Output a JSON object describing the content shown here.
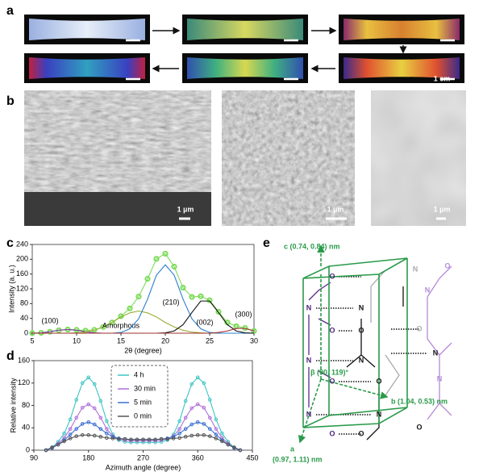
{
  "panel_labels": [
    "a",
    "b",
    "c",
    "d",
    "e"
  ],
  "panel_a": {
    "scale": "1 cm"
  },
  "panel_b": {
    "scales": [
      "1 µm",
      "1 µm",
      "1 µm"
    ]
  },
  "chart_data": [
    {
      "type": "line",
      "xlabel": "2θ (degree)",
      "ylabel": "Intensity (a. u.)",
      "x": [
        5,
        6,
        7,
        8,
        9,
        10,
        11,
        12,
        13,
        14,
        15,
        16,
        17,
        18,
        19,
        20,
        21,
        22,
        23,
        24,
        25,
        26,
        27,
        28,
        29,
        30
      ],
      "xlim": [
        5,
        30
      ],
      "xticks": [
        5,
        10,
        15,
        20,
        25,
        30
      ],
      "ylim": [
        0,
        240
      ],
      "yticks": [
        0,
        40,
        80,
        120,
        160,
        200,
        240
      ],
      "series": [
        {
          "color": "#7ddc5a",
          "markers": true,
          "values": [
            0,
            1,
            4,
            8,
            10,
            9,
            7,
            9,
            17,
            29,
            46,
            67,
            99,
            147,
            201,
            215,
            180,
            123,
            98,
            100,
            89,
            58,
            29,
            19,
            14,
            6
          ]
        },
        {
          "name": "(100)",
          "color": "#7a3aa0",
          "values": [
            0,
            1,
            4,
            8,
            10,
            8,
            4,
            1,
            0,
            0,
            0,
            0,
            0,
            0,
            0,
            0,
            0,
            0,
            0,
            0,
            0,
            0,
            0,
            0,
            0,
            0
          ]
        },
        {
          "name": "Amorphous",
          "color": "#9aaa30",
          "values": [
            0,
            0,
            0,
            0,
            0,
            1,
            3,
            8,
            17,
            29,
            44,
            55,
            60,
            55,
            44,
            29,
            17,
            8,
            3,
            1,
            0,
            0,
            0,
            0,
            0,
            0
          ]
        },
        {
          "name": "(210)",
          "color": "#2a7fd0",
          "values": [
            0,
            0,
            0,
            0,
            0,
            0,
            0,
            0,
            0,
            0,
            2,
            12,
            39,
            92,
            157,
            185,
            157,
            92,
            39,
            12,
            2,
            0,
            0,
            0,
            0,
            0
          ]
        },
        {
          "name": "(002)",
          "color": "#111111",
          "values": [
            0,
            0,
            0,
            0,
            0,
            0,
            0,
            0,
            0,
            0,
            0,
            0,
            0,
            0,
            0,
            1,
            6,
            23,
            56,
            87,
            87,
            56,
            23,
            6,
            1,
            0
          ]
        },
        {
          "name": "(300)",
          "color": "#a03030",
          "values": [
            0,
            0,
            0,
            0,
            0,
            0,
            0,
            0,
            0,
            0,
            0,
            0,
            0,
            0,
            0,
            0,
            0,
            0,
            0,
            0,
            0,
            2,
            6,
            13,
            13,
            6
          ]
        }
      ]
    },
    {
      "type": "line",
      "xlabel": "Azimuth angle (degree)",
      "ylabel": "Relative intensity",
      "x": [
        110,
        120,
        130,
        140,
        150,
        160,
        170,
        180,
        190,
        200,
        210,
        220,
        230,
        240,
        250,
        260,
        270,
        280,
        290,
        300,
        310,
        320,
        330,
        340,
        350,
        360,
        370,
        380,
        390,
        400,
        410,
        420,
        430
      ],
      "xlim": [
        90,
        450
      ],
      "xticks": [
        90,
        180,
        270,
        360,
        450
      ],
      "ylim": [
        0,
        160
      ],
      "yticks": [
        0,
        40,
        80,
        120,
        160
      ],
      "legend": "top",
      "series": [
        {
          "name": "4 h",
          "color": "#3fc4c4",
          "markers": true,
          "values": [
            0,
            5,
            15,
            30,
            55,
            90,
            120,
            130,
            118,
            88,
            52,
            28,
            18,
            15,
            14,
            14,
            14,
            14,
            14,
            15,
            18,
            28,
            52,
            88,
            118,
            130,
            120,
            90,
            55,
            30,
            15,
            5,
            0
          ]
        },
        {
          "name": "30 min",
          "color": "#b070d8",
          "markers": true,
          "values": [
            0,
            4,
            12,
            22,
            38,
            58,
            76,
            82,
            75,
            58,
            38,
            25,
            20,
            18,
            17,
            17,
            17,
            17,
            17,
            18,
            20,
            25,
            38,
            58,
            75,
            82,
            76,
            58,
            38,
            22,
            12,
            4,
            0
          ]
        },
        {
          "name": "5 min",
          "color": "#3a6fd0",
          "markers": true,
          "values": [
            0,
            4,
            10,
            18,
            28,
            38,
            47,
            50,
            46,
            38,
            30,
            24,
            21,
            20,
            19,
            19,
            19,
            19,
            19,
            20,
            21,
            24,
            30,
            38,
            46,
            50,
            47,
            38,
            28,
            18,
            10,
            4,
            0
          ]
        },
        {
          "name": "0 min",
          "color": "#555555",
          "markers": true,
          "values": [
            0,
            5,
            10,
            16,
            21,
            25,
            27,
            27,
            26,
            24,
            22,
            21,
            20,
            20,
            19,
            19,
            19,
            19,
            19,
            20,
            20,
            21,
            22,
            24,
            26,
            27,
            27,
            25,
            21,
            16,
            10,
            5,
            0
          ]
        }
      ]
    }
  ],
  "panel_e": {
    "c_label": "c (0.74, 0.84) nm",
    "beta_label": "β (90, 119)°",
    "b_label": "b (1.04, 0.53) nm",
    "a_label": "a",
    "a_value": "(0.97, 1.11) nm",
    "atoms": [
      "O",
      "N",
      "O",
      "N",
      "O",
      "N",
      "O",
      "N",
      "O",
      "N",
      "O",
      "N",
      "O",
      "N",
      "O",
      "N",
      "N",
      "O",
      "N",
      "O"
    ]
  }
}
